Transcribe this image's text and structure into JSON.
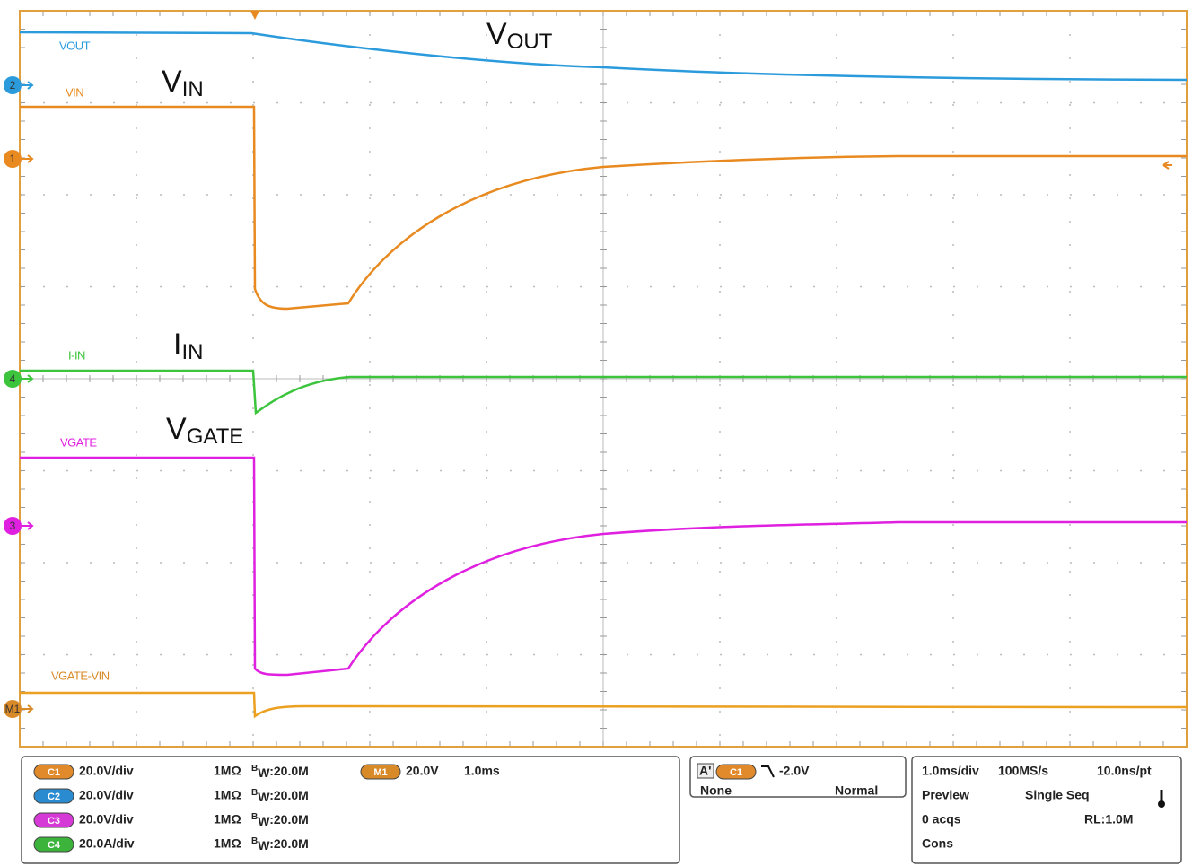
{
  "traces": [
    {
      "label": "VOUT",
      "annotation": {
        "main": "V",
        "sub": "OUT"
      },
      "marker": "2"
    },
    {
      "label": "VIN",
      "annotation": {
        "main": "V",
        "sub": "IN"
      },
      "marker": "1"
    },
    {
      "label": "I-IN",
      "annotation": {
        "main": "I",
        "sub": "IN"
      },
      "marker": "4"
    },
    {
      "label": "VGATE",
      "annotation": {
        "main": "V",
        "sub": "GATE"
      },
      "marker": "3"
    },
    {
      "label": "VGATE-VIN",
      "marker": "M1"
    }
  ],
  "channels": [
    {
      "badge": "C1",
      "scale": "20.0V/div",
      "impedance": "1MΩ",
      "bw_prefix": "B",
      "bw_sub": "W",
      "bw_value": ":20.0M"
    },
    {
      "badge": "C2",
      "scale": "20.0V/div",
      "impedance": "1MΩ",
      "bw_prefix": "B",
      "bw_sub": "W",
      "bw_value": ":20.0M"
    },
    {
      "badge": "C3",
      "scale": "20.0V/div",
      "impedance": "1MΩ",
      "bw_prefix": "B",
      "bw_sub": "W",
      "bw_value": ":20.0M"
    },
    {
      "badge": "C4",
      "scale": "20.0A/div",
      "impedance": "1MΩ",
      "bw_prefix": "B",
      "bw_sub": "W",
      "bw_value": ":20.0M"
    }
  ],
  "math": {
    "badge": "M1",
    "scale": "20.0V",
    "time": "1.0ms"
  },
  "trigger": {
    "marker": "A'",
    "source": "C1",
    "level": "-2.0V",
    "coupling": "None",
    "mode": "Normal"
  },
  "acquisition": {
    "timebase": "1.0ms/div",
    "sample_rate": "100MS/s",
    "resolution": "10.0ns/pt",
    "state": "Preview",
    "run_mode": "Single Seq",
    "count": "0 acqs",
    "record_length": "RL:1.0M",
    "status": "Cons"
  }
}
